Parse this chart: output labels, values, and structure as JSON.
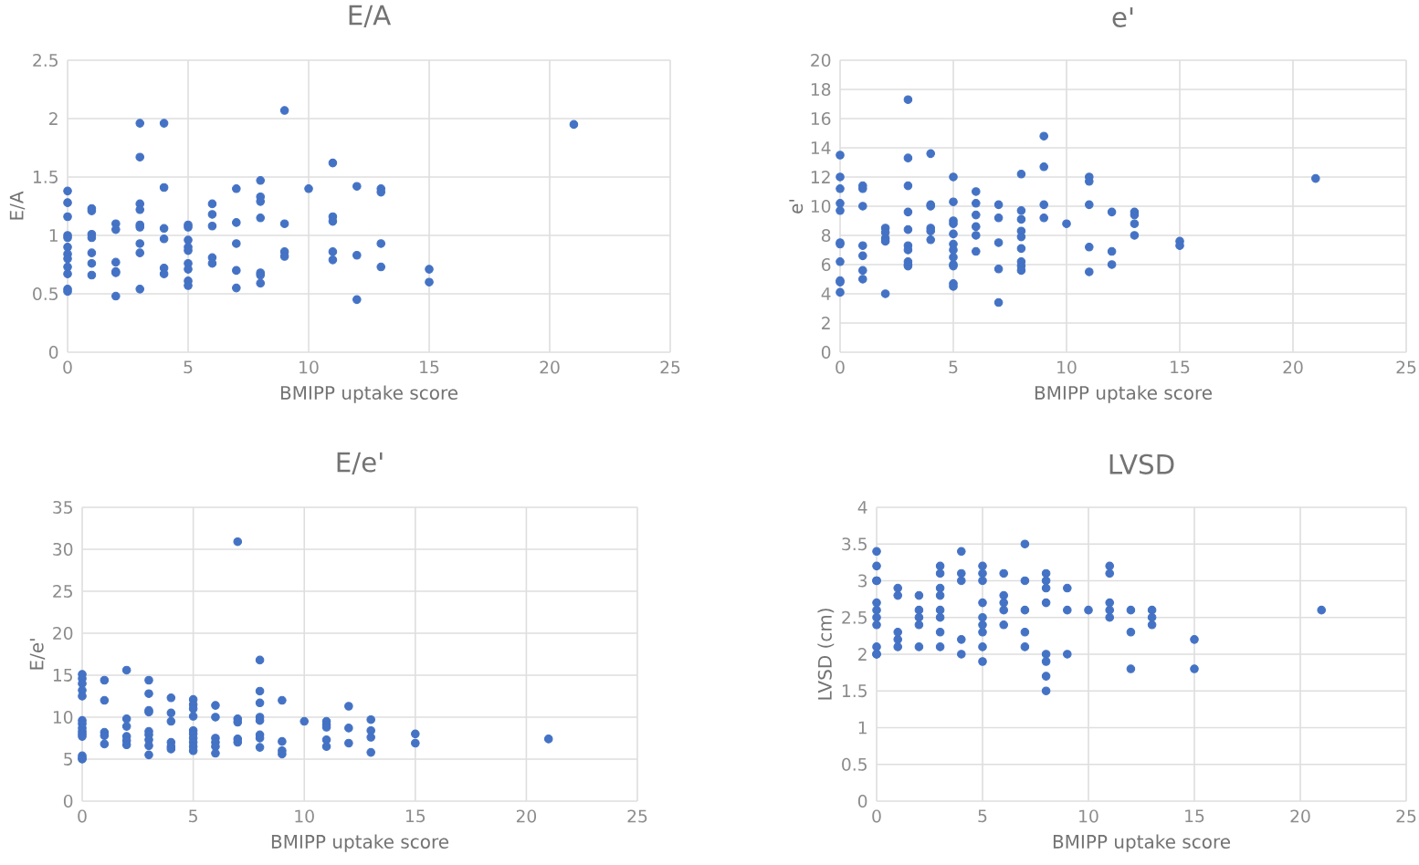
{
  "chart_data": [
    {
      "type": "scatter",
      "title": "E/A",
      "xlabel": "BMIPP uptake score",
      "ylabel": "E/A",
      "color": "#4472c4",
      "marker": "circle",
      "grid": true,
      "xlim": [
        0,
        25
      ],
      "xticks": [
        0,
        5,
        10,
        15,
        20,
        25
      ],
      "ylim": [
        0,
        2.5
      ],
      "yticks": [
        0,
        0.5,
        1,
        1.5,
        2,
        2.5
      ],
      "x": [
        0,
        0,
        0,
        0,
        0,
        0,
        0,
        0,
        0,
        0,
        0,
        0,
        1,
        1,
        1,
        1,
        1,
        1,
        1,
        2,
        2,
        2,
        2,
        2,
        2,
        3,
        3,
        3,
        3,
        3,
        3,
        3,
        3,
        3,
        4,
        4,
        4,
        4,
        4,
        4,
        5,
        5,
        5,
        5,
        5,
        5,
        5,
        5,
        5,
        6,
        6,
        6,
        6,
        6,
        7,
        7,
        7,
        7,
        7,
        8,
        8,
        8,
        8,
        8,
        8,
        8,
        9,
        9,
        9,
        9,
        10,
        11,
        11,
        11,
        11,
        11,
        12,
        12,
        12,
        13,
        13,
        13,
        13,
        15,
        15,
        21
      ],
      "values": [
        1.38,
        1.28,
        1.16,
        1.0,
        0.98,
        0.9,
        0.84,
        0.8,
        0.73,
        0.67,
        0.54,
        0.52,
        1.23,
        1.21,
        1.01,
        0.98,
        0.85,
        0.76,
        0.66,
        1.1,
        1.05,
        0.77,
        0.69,
        0.68,
        0.48,
        1.96,
        1.67,
        1.27,
        1.22,
        1.09,
        1.07,
        0.93,
        0.85,
        0.54,
        1.96,
        1.41,
        1.06,
        0.97,
        0.72,
        0.67,
        1.09,
        1.07,
        0.96,
        0.9,
        0.87,
        0.76,
        0.71,
        0.61,
        0.57,
        1.27,
        1.18,
        1.08,
        0.81,
        0.76,
        1.4,
        1.11,
        0.93,
        0.7,
        0.55,
        1.47,
        1.33,
        1.29,
        1.15,
        0.68,
        0.66,
        0.59,
        2.07,
        1.1,
        0.86,
        0.82,
        1.4,
        1.62,
        1.16,
        1.12,
        0.86,
        0.79,
        1.42,
        0.83,
        0.45,
        1.4,
        1.37,
        0.93,
        0.73,
        0.71,
        0.6,
        1.95
      ]
    },
    {
      "type": "scatter",
      "title": "e'",
      "xlabel": "BMIPP uptake score",
      "ylabel": "e'",
      "color": "#4472c4",
      "marker": "circle",
      "grid": true,
      "xlim": [
        0,
        25
      ],
      "xticks": [
        0,
        5,
        10,
        15,
        20,
        25
      ],
      "ylim": [
        0,
        20
      ],
      "yticks": [
        0,
        2,
        4,
        6,
        8,
        10,
        12,
        14,
        16,
        18,
        20
      ],
      "x": [
        0,
        0,
        0,
        0,
        0,
        0,
        0,
        0,
        0,
        0,
        0,
        1,
        1,
        1,
        1,
        1,
        1,
        1,
        2,
        2,
        2,
        2,
        2,
        3,
        3,
        3,
        3,
        3,
        3,
        3,
        3,
        3,
        3,
        4,
        4,
        4,
        4,
        4,
        4,
        5,
        5,
        5,
        5,
        5,
        5,
        5,
        5,
        5,
        5,
        5,
        5,
        6,
        6,
        6,
        6,
        6,
        6,
        7,
        7,
        7,
        7,
        7,
        8,
        8,
        8,
        8,
        8,
        8,
        8,
        8,
        8,
        9,
        9,
        9,
        9,
        10,
        11,
        11,
        11,
        11,
        11,
        12,
        12,
        12,
        13,
        13,
        13,
        13,
        15,
        15,
        21
      ],
      "values": [
        13.5,
        12,
        11.2,
        10.2,
        9.7,
        7.5,
        7.4,
        6.2,
        4.9,
        4.8,
        4.1,
        11.4,
        11.2,
        10,
        7.3,
        6.6,
        5.6,
        5,
        8.5,
        8.2,
        7.8,
        7.6,
        4,
        17.3,
        13.3,
        11.4,
        9.6,
        8.4,
        7.3,
        7,
        6.2,
        6,
        5.9,
        13.6,
        10.1,
        10,
        8.5,
        8.3,
        7.7,
        12,
        10.3,
        9,
        8.8,
        8.1,
        7.4,
        7,
        6.5,
        6,
        5.9,
        4.7,
        4.5,
        11,
        10.2,
        9.4,
        8.6,
        8,
        6.9,
        10.1,
        9.2,
        7.5,
        5.7,
        3.4,
        12.2,
        9.7,
        9.1,
        8.3,
        7.9,
        7.1,
        6.2,
        5.9,
        5.6,
        14.8,
        12.7,
        10.1,
        9.2,
        8.8,
        12,
        11.7,
        10.1,
        7.2,
        5.5,
        9.6,
        6.9,
        6,
        9.6,
        9.4,
        8.8,
        8,
        7.6,
        7.3,
        11.9
      ]
    },
    {
      "type": "scatter",
      "title": "E/e'",
      "xlabel": "BMIPP uptake score",
      "ylabel": "E/e'",
      "color": "#4472c4",
      "marker": "circle",
      "grid": true,
      "xlim": [
        0,
        25
      ],
      "xticks": [
        0,
        5,
        10,
        15,
        20,
        25
      ],
      "ylim": [
        0,
        35
      ],
      "yticks": [
        0,
        5,
        10,
        15,
        20,
        25,
        30,
        35
      ],
      "x": [
        0,
        0,
        0,
        0,
        0,
        0,
        0,
        0,
        0,
        0,
        0,
        0,
        0,
        0,
        1,
        1,
        1,
        1,
        1,
        2,
        2,
        2,
        2,
        2,
        2,
        3,
        3,
        3,
        3,
        3,
        3,
        3,
        3,
        3,
        4,
        4,
        4,
        4,
        4,
        4,
        5,
        5,
        5,
        5,
        5,
        5,
        5,
        5,
        5,
        5,
        6,
        6,
        6,
        6,
        6,
        6,
        7,
        7,
        7,
        7,
        7,
        8,
        8,
        8,
        8,
        8,
        8,
        8,
        8,
        9,
        9,
        9,
        9,
        10,
        11,
        11,
        11,
        11,
        11,
        12,
        12,
        12,
        13,
        13,
        13,
        13,
        15,
        15,
        21
      ],
      "values": [
        15.1,
        14.6,
        14,
        13.2,
        12.5,
        9.6,
        9.2,
        8.7,
        8.3,
        8,
        7.7,
        5.4,
        5.1,
        5,
        14.4,
        12,
        8.2,
        7.8,
        6.8,
        15.6,
        9.8,
        8.9,
        7.7,
        7.2,
        6.7,
        14.4,
        12.8,
        10.8,
        10.6,
        8.3,
        7.9,
        7.3,
        6.6,
        5.5,
        12.3,
        10.5,
        9.5,
        7,
        6.5,
        6.2,
        12.1,
        11.5,
        11,
        10.1,
        8.4,
        8,
        7.5,
        7,
        6.5,
        6,
        11.4,
        10,
        7.5,
        7,
        6.5,
        5.7,
        30.9,
        9.8,
        9.4,
        7.4,
        7,
        16.8,
        13.1,
        11.7,
        10,
        9.6,
        7.9,
        7.5,
        6.4,
        12,
        7.1,
        6,
        5.6,
        9.5,
        9.5,
        9.1,
        8.8,
        7.3,
        6.5,
        11.3,
        8.7,
        6.9,
        9.7,
        8.4,
        7.6,
        5.8,
        8,
        6.9,
        7.4
      ]
    },
    {
      "type": "scatter",
      "title": "LVSD",
      "xlabel": "BMIPP uptake score",
      "ylabel": "LVSD (cm)",
      "color": "#4472c4",
      "marker": "circle",
      "grid": true,
      "xlim": [
        0,
        25
      ],
      "xticks": [
        0,
        5,
        10,
        15,
        20,
        25
      ],
      "ylim": [
        0,
        4
      ],
      "yticks": [
        0,
        0.5,
        1,
        1.5,
        2,
        2.5,
        3,
        3.5,
        4
      ],
      "x": [
        0,
        0,
        0,
        0,
        0,
        0,
        0,
        0,
        0,
        0,
        0,
        1,
        1,
        1,
        1,
        1,
        2,
        2,
        2,
        2,
        2,
        3,
        3,
        3,
        3,
        3,
        3,
        3,
        3,
        4,
        4,
        4,
        4,
        4,
        5,
        5,
        5,
        5,
        5,
        5,
        5,
        5,
        5,
        6,
        6,
        6,
        6,
        6,
        7,
        7,
        7,
        7,
        7,
        8,
        8,
        8,
        8,
        8,
        8,
        8,
        8,
        9,
        9,
        9,
        10,
        11,
        11,
        11,
        11,
        11,
        12,
        12,
        12,
        13,
        13,
        13,
        15,
        15,
        21
      ],
      "values": [
        3.4,
        3.2,
        3,
        3,
        2.7,
        2.6,
        2.5,
        2.4,
        2.1,
        2,
        2,
        2.9,
        2.8,
        2.3,
        2.2,
        2.1,
        2.8,
        2.6,
        2.5,
        2.4,
        2.1,
        3.2,
        3.1,
        2.9,
        2.8,
        2.6,
        2.5,
        2.3,
        2.1,
        3.4,
        3.1,
        3,
        2.2,
        2,
        3.2,
        3.1,
        3,
        2.7,
        2.5,
        2.4,
        2.3,
        2.1,
        1.9,
        3.1,
        2.8,
        2.7,
        2.6,
        2.4,
        3.5,
        3,
        2.6,
        2.3,
        2.1,
        3.1,
        3,
        2.9,
        2.7,
        2,
        1.9,
        1.7,
        1.5,
        2.9,
        2.6,
        2,
        2.6,
        3.2,
        3.1,
        2.7,
        2.6,
        2.5,
        2.6,
        2.3,
        1.8,
        2.6,
        2.5,
        2.4,
        2.2,
        1.8,
        2.6
      ]
    }
  ]
}
